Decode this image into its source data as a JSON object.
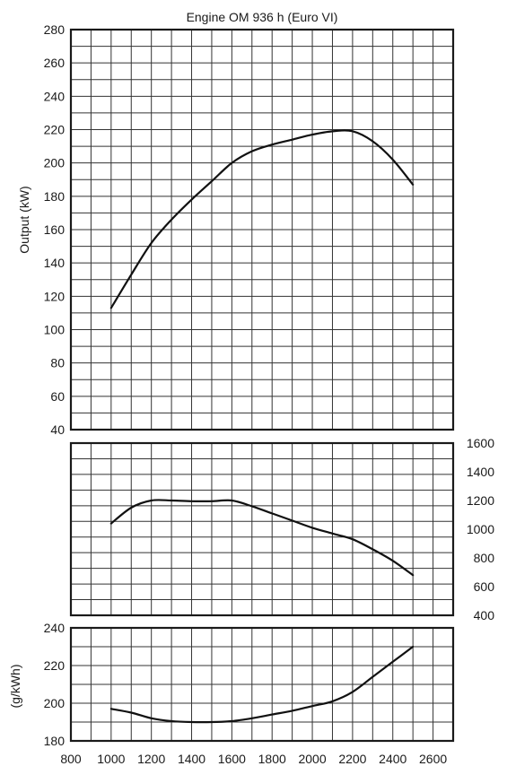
{
  "chart_data": [
    {
      "type": "line",
      "title": "Engine OM 936 h (Euro VI)",
      "xlabel": "",
      "ylabel": "Output (kW)",
      "xlim": [
        800,
        2700
      ],
      "ylim": [
        40,
        280
      ],
      "y_ticks": [
        40,
        60,
        80,
        100,
        120,
        140,
        160,
        180,
        200,
        220,
        240,
        260,
        280
      ],
      "grid": true,
      "series": [
        {
          "x": [
            1000,
            1100,
            1200,
            1300,
            1400,
            1500,
            1600,
            1700,
            1800,
            1900,
            2000,
            2100,
            2200,
            2300,
            2400,
            2500
          ],
          "y": [
            113,
            133,
            152,
            166,
            178,
            189,
            200,
            207,
            211,
            214,
            217,
            219,
            219,
            213,
            202,
            187
          ]
        }
      ]
    },
    {
      "type": "line",
      "xlabel": "",
      "ylabel": "",
      "xlim": [
        800,
        2700
      ],
      "ylim": [
        400,
        1600
      ],
      "y_ticks": [
        400,
        600,
        800,
        1000,
        1200,
        1400,
        1600
      ],
      "y_axis_side": "right",
      "grid": true,
      "series": [
        {
          "x": [
            1000,
            1100,
            1200,
            1300,
            1400,
            1500,
            1600,
            1700,
            1800,
            1900,
            2000,
            2100,
            2200,
            2300,
            2400,
            2500
          ],
          "y": [
            1040,
            1150,
            1200,
            1200,
            1195,
            1195,
            1200,
            1160,
            1110,
            1060,
            1010,
            970,
            930,
            860,
            780,
            680
          ]
        }
      ]
    },
    {
      "type": "line",
      "xlabel": "",
      "ylabel": "(g/kWh)",
      "xlim": [
        800,
        2700
      ],
      "ylim": [
        180,
        240
      ],
      "x_ticks": [
        800,
        1000,
        1200,
        1400,
        1600,
        1800,
        2000,
        2200,
        2400,
        2600
      ],
      "y_ticks": [
        180,
        200,
        220,
        240
      ],
      "grid": true,
      "series": [
        {
          "x": [
            1000,
            1100,
            1200,
            1300,
            1400,
            1500,
            1600,
            1700,
            1800,
            1900,
            2000,
            2100,
            2200,
            2300,
            2400,
            2500
          ],
          "y": [
            197,
            195,
            192,
            190.5,
            190,
            190,
            190.5,
            192,
            194,
            196,
            198.5,
            201,
            206,
            214,
            222,
            230
          ]
        }
      ]
    }
  ]
}
